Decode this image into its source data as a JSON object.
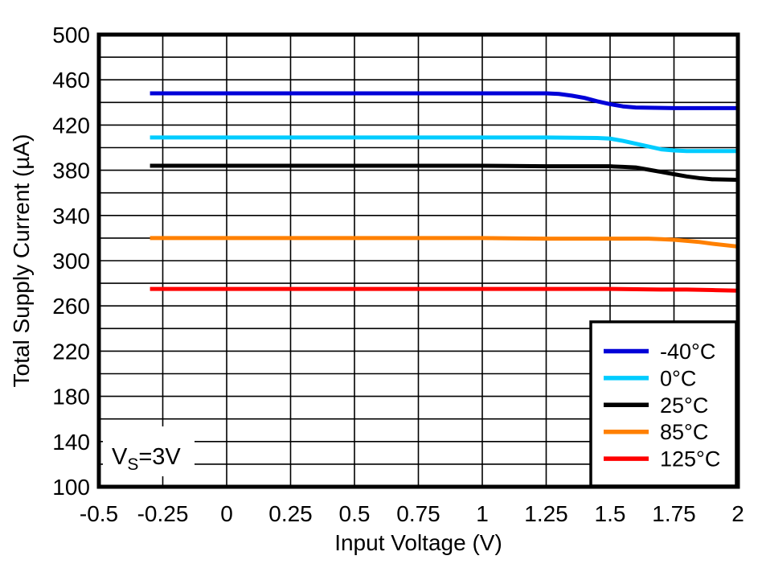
{
  "chart_data": {
    "type": "line",
    "xlabel": "Input Voltage (V)",
    "ylabel": "Total Supply Current (µA)",
    "xlim": [
      -0.5,
      2
    ],
    "ylim": [
      100,
      500
    ],
    "x_ticks": [
      -0.5,
      -0.25,
      0,
      0.25,
      0.5,
      0.75,
      1,
      1.25,
      1.5,
      1.75,
      2
    ],
    "x_tick_labels": [
      "-0.5",
      "-0.25",
      "0",
      "0.25",
      "0.5",
      "0.75",
      "1",
      "1.25",
      "1.5",
      "1.75",
      "2"
    ],
    "y_ticks": [
      100,
      140,
      180,
      220,
      260,
      300,
      340,
      380,
      420,
      460,
      500
    ],
    "y_tick_labels": [
      "100",
      "140",
      "180",
      "220",
      "260",
      "300",
      "340",
      "380",
      "420",
      "460",
      "500"
    ],
    "y_grid_step": 20,
    "x_grid_step": 0.25,
    "grid": true,
    "frame_color": "#000000",
    "grid_color": "#000000",
    "legend_position": "bottom-right",
    "annotation": {
      "text_main": "V",
      "text_sub": "S",
      "text_rest": "=3V"
    },
    "series": [
      {
        "name": "-40°C",
        "color": "#0000D8",
        "x": [
          -0.3,
          0,
          0.25,
          0.5,
          0.75,
          1,
          1.25,
          1.3,
          1.35,
          1.4,
          1.45,
          1.5,
          1.55,
          1.6,
          1.75,
          2
        ],
        "y": [
          448,
          448,
          448,
          448,
          448,
          448,
          448,
          447.5,
          446,
          444,
          441,
          438.5,
          436.5,
          435.5,
          435,
          435
        ]
      },
      {
        "name": "0°C",
        "color": "#00CCFF",
        "x": [
          -0.3,
          0,
          0.25,
          0.5,
          0.75,
          1,
          1.25,
          1.45,
          1.5,
          1.55,
          1.6,
          1.65,
          1.7,
          1.75,
          1.8,
          2
        ],
        "y": [
          409,
          409,
          409,
          409,
          409,
          409,
          409,
          408.5,
          408,
          406,
          403.5,
          401,
          398.5,
          397.5,
          397,
          397
        ]
      },
      {
        "name": "25°C",
        "color": "#000000",
        "x": [
          -0.3,
          0,
          0.25,
          0.5,
          0.75,
          1,
          1.25,
          1.5,
          1.55,
          1.6,
          1.65,
          1.7,
          1.75,
          1.8,
          1.85,
          1.9,
          2
        ],
        "y": [
          384,
          384,
          384,
          384,
          384,
          384,
          383.5,
          383.5,
          383,
          382.5,
          380.5,
          378.5,
          376.5,
          374.5,
          373,
          372,
          371.5
        ]
      },
      {
        "name": "85°C",
        "color": "#FF8000",
        "x": [
          -0.3,
          0,
          0.25,
          0.5,
          0.75,
          1,
          1.25,
          1.5,
          1.65,
          1.7,
          1.75,
          1.8,
          1.85,
          1.9,
          2
        ],
        "y": [
          320,
          320,
          320,
          320,
          320,
          320,
          319.5,
          319.5,
          319.5,
          319,
          318.5,
          317.5,
          316.5,
          315,
          312.5
        ]
      },
      {
        "name": "125°C",
        "color": "#FF0000",
        "x": [
          -0.3,
          0,
          0.25,
          0.5,
          0.75,
          1,
          1.25,
          1.5,
          1.7,
          1.75,
          1.8,
          1.9,
          2
        ],
        "y": [
          275,
          275,
          275,
          275,
          275,
          275,
          275,
          275,
          274.5,
          274.5,
          274.5,
          274,
          273.5
        ]
      }
    ]
  }
}
